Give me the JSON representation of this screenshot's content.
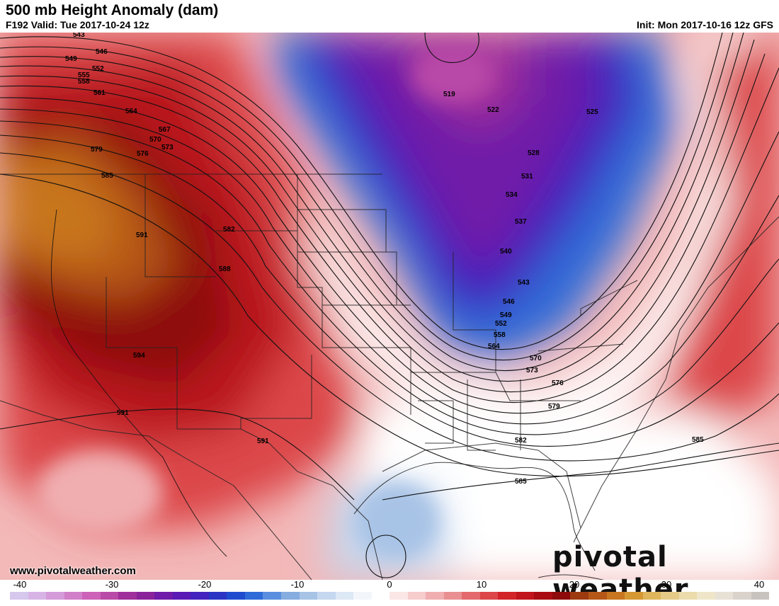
{
  "header": {
    "title": "500 mb Height Anomaly (dam)",
    "valid": "F192 Valid: Tue 2017-10-24 12z",
    "init": "Init: Mon 2017-10-16 12z GFS"
  },
  "footer": {
    "website": "www.pivotalweather.com",
    "brand": "pivotal weather"
  },
  "contour_labels": [
    "543",
    "546",
    "549",
    "552",
    "555",
    "558",
    "561",
    "564",
    "567",
    "570",
    "573",
    "576",
    "579",
    "582",
    "585",
    "588",
    "591",
    "594",
    "519",
    "522",
    "525",
    "528",
    "531",
    "534",
    "537",
    "540",
    "543",
    "546",
    "549",
    "552",
    "558",
    "564",
    "570",
    "573",
    "576",
    "579",
    "582",
    "585",
    "585",
    "591",
    "591"
  ],
  "colorbar": {
    "ticks": [
      "-40",
      "-30",
      "-20",
      "-10",
      "0",
      "10",
      "20",
      "30",
      "40"
    ],
    "colors": [
      "#d6c7ec",
      "#d8b4e6",
      "#d49ad9",
      "#d27fc9",
      "#cc63b8",
      "#b94aa8",
      "#9f2f9a",
      "#8a229a",
      "#6f1aa8",
      "#5a19b5",
      "#4322bd",
      "#2a35c4",
      "#1f4ccf",
      "#2e6bd8",
      "#5a8fe0",
      "#86addf",
      "#a7c3e6",
      "#c6d8ef",
      "#dde8f5",
      "#f2f6fb",
      "#ffffff",
      "#fbe6e6",
      "#f6cccd",
      "#f0aeb0",
      "#ea8f91",
      "#e3696c",
      "#dc4649",
      "#d22328",
      "#c1141c",
      "#a80c12",
      "#8e0a0a",
      "#9d3a10",
      "#b65718",
      "#c8761f",
      "#d69833",
      "#dfb65c",
      "#e6cb88",
      "#ecdcac",
      "#efe6c9",
      "#e8e1d6",
      "#d9d3cc",
      "#c9c3bf"
    ]
  }
}
